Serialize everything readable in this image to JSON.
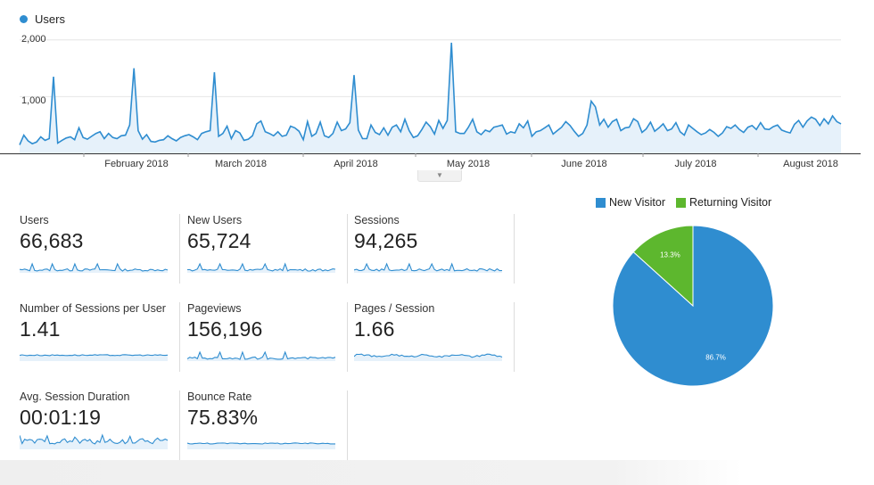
{
  "colors": {
    "users_line": "#2f8dd0",
    "users_fill": "#e6f1fa",
    "new_visitor": "#2f8dd0",
    "returning_visitor": "#5db72e"
  },
  "chart_data": [
    {
      "type": "line",
      "title": "",
      "series": [
        {
          "name": "Users",
          "values": [
            150,
            320,
            220,
            170,
            200,
            290,
            230,
            260,
            1350,
            180,
            230,
            270,
            290,
            240,
            450,
            280,
            250,
            300,
            350,
            380,
            260,
            350,
            280,
            260,
            310,
            320,
            500,
            1500,
            400,
            250,
            330,
            210,
            200,
            230,
            240,
            310,
            260,
            220,
            280,
            310,
            330,
            290,
            240,
            350,
            380,
            400,
            1430,
            300,
            350,
            480,
            260,
            400,
            360,
            230,
            250,
            310,
            520,
            570,
            380,
            350,
            310,
            380,
            300,
            320,
            480,
            450,
            390,
            240,
            560,
            300,
            350,
            550,
            310,
            280,
            350,
            550,
            400,
            430,
            540,
            1380,
            410,
            260,
            260,
            500,
            370,
            330,
            450,
            320,
            460,
            500,
            380,
            600,
            400,
            280,
            310,
            420,
            550,
            470,
            340,
            580,
            440,
            580,
            1950,
            380,
            350,
            350,
            460,
            600,
            380,
            330,
            410,
            380,
            460,
            480,
            500,
            340,
            380,
            360,
            520,
            450,
            570,
            300,
            380,
            400,
            450,
            500,
            340,
            400,
            460,
            560,
            490,
            390,
            300,
            350,
            500,
            920,
            820,
            500,
            600,
            460,
            560,
            600,
            400,
            450,
            460,
            610,
            560,
            370,
            430,
            550,
            390,
            450,
            520,
            400,
            430,
            540,
            380,
            320,
            500,
            440,
            380,
            330,
            360,
            420,
            370,
            300,
            360,
            470,
            440,
            500,
            420,
            370,
            460,
            490,
            420,
            540,
            430,
            420,
            470,
            500,
            410,
            380,
            360,
            510,
            580,
            460,
            570,
            640,
            600,
            490,
            610,
            520,
            660,
            560,
            520
          ]
        }
      ],
      "x_labels": [
        "February 2018",
        "March 2018",
        "April 2018",
        "May 2018",
        "June 2018",
        "July 2018",
        "August 2018"
      ],
      "y_ticks": [
        "2,000",
        "1,000"
      ],
      "ylim": [
        0,
        2200
      ],
      "legend": "top-left"
    },
    {
      "type": "pie",
      "categories": [
        "New Visitor",
        "Returning Visitor"
      ],
      "values": [
        86.7,
        13.3
      ],
      "data_labels": [
        "86.7%",
        "13.3%"
      ],
      "legend": "top"
    }
  ],
  "metrics": [
    {
      "label": "Users",
      "value": "66,683",
      "spark": "spiky"
    },
    {
      "label": "New Users",
      "value": "65,724",
      "spark": "spiky"
    },
    {
      "label": "Sessions",
      "value": "94,265",
      "spark": "spiky"
    },
    {
      "label": "Number of Sessions per User",
      "value": "1.41",
      "spark": "flat"
    },
    {
      "label": "Pageviews",
      "value": "156,196",
      "spark": "spiky"
    },
    {
      "label": "Pages / Session",
      "value": "1.66",
      "spark": "wavy"
    },
    {
      "label": "Avg. Session Duration",
      "value": "00:01:19",
      "spark": "noisy"
    },
    {
      "label": "Bounce Rate",
      "value": "75.83%",
      "spark": "flat"
    }
  ]
}
